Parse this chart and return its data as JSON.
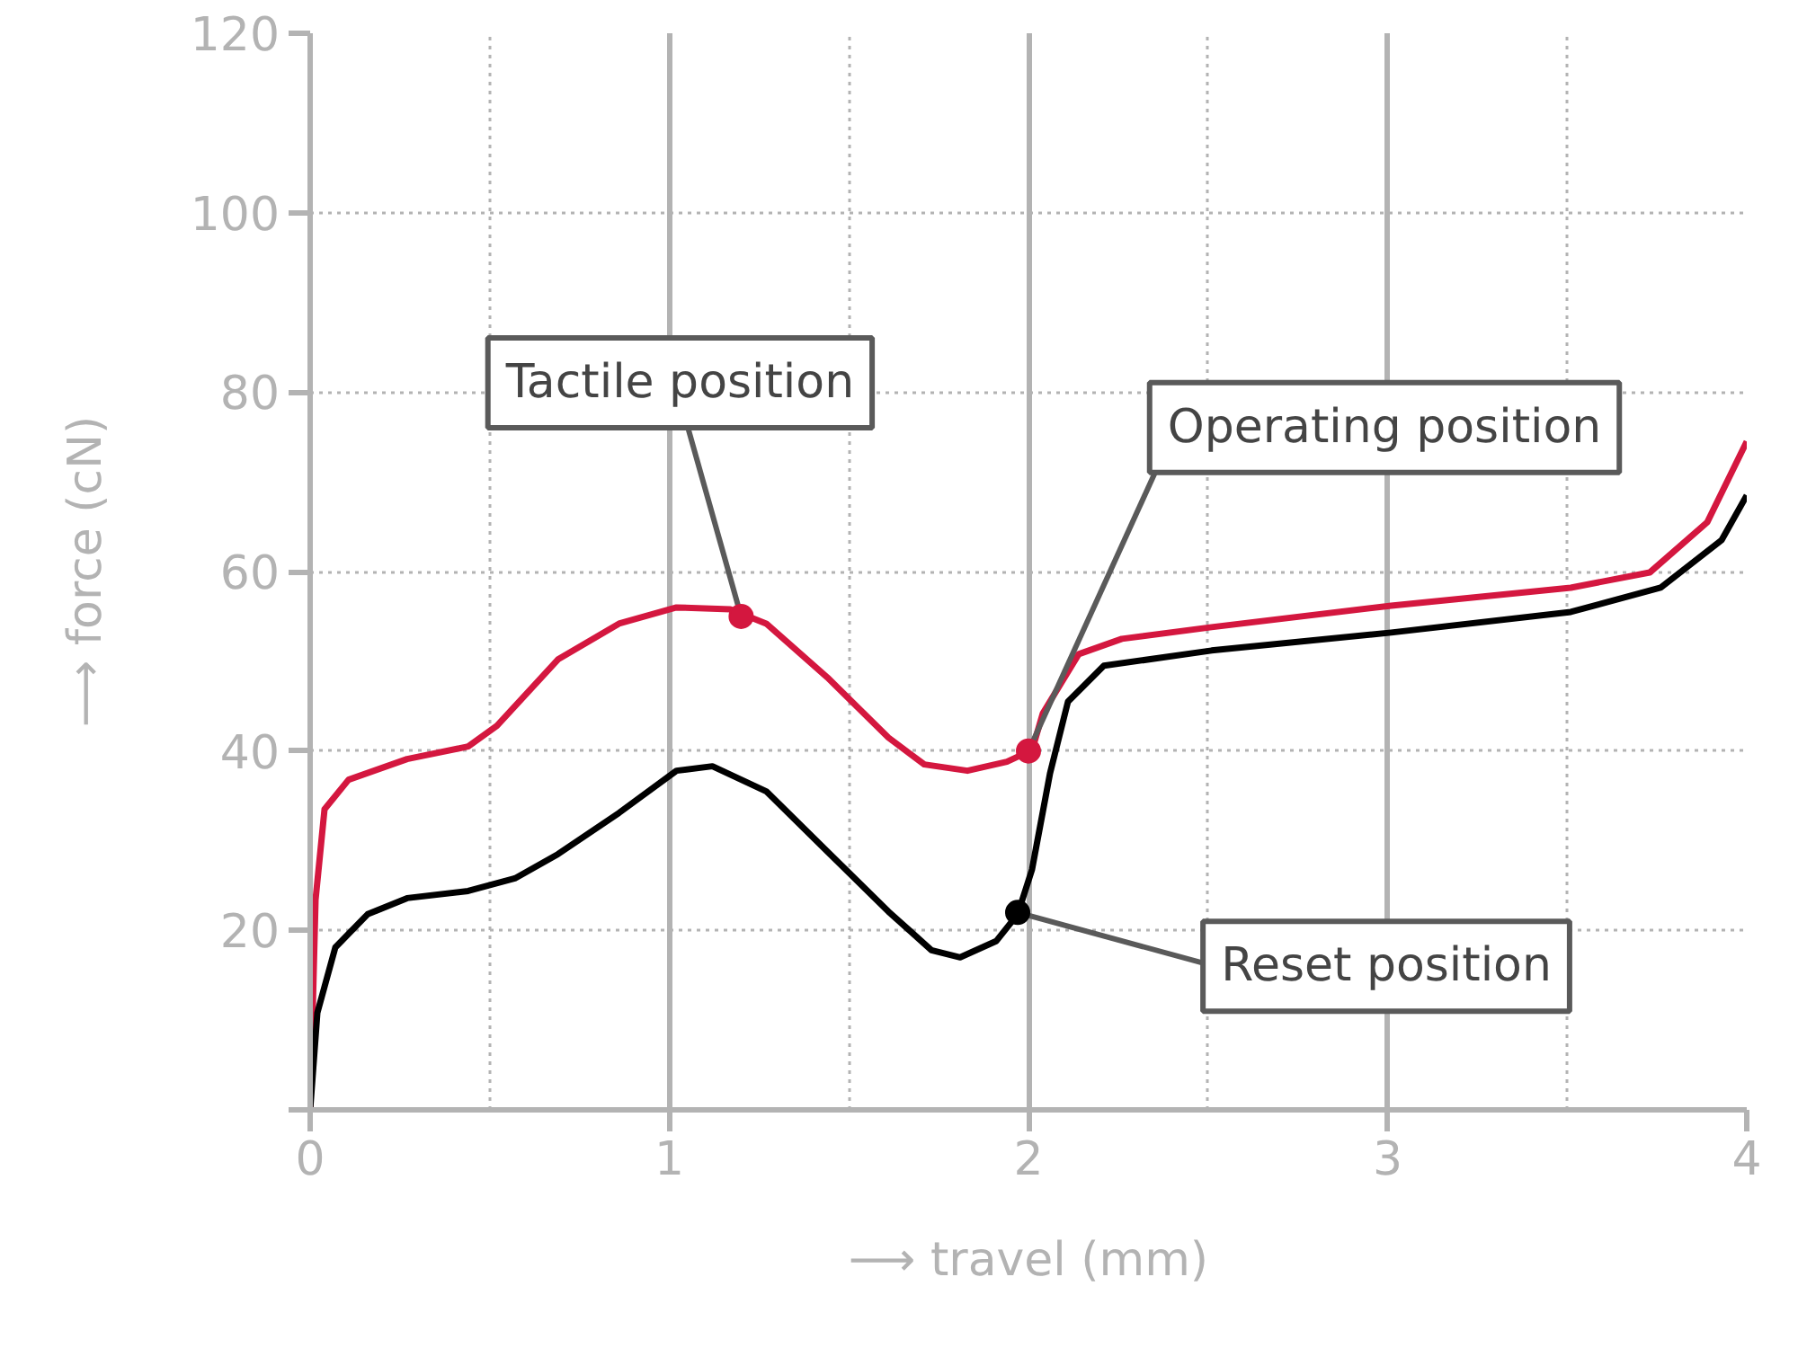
{
  "chart_data": {
    "type": "line",
    "xlabel": "⟶ travel (mm)",
    "ylabel": "⟶ force (cN)",
    "xlim": [
      0,
      4
    ],
    "ylim": [
      0,
      120
    ],
    "xticks": [
      0,
      {
        "value": 0.5,
        "label": null
      },
      1,
      {
        "value": 1.5,
        "label": null
      },
      2,
      {
        "value": 2.5,
        "label": null
      },
      3,
      {
        "value": 3.5,
        "label": null
      },
      4
    ],
    "yticks": [
      {
        "value": 0,
        "label": null
      },
      20,
      40,
      60,
      80,
      100,
      120
    ],
    "grid": true,
    "marker": "none",
    "line_style": "solid",
    "series": [
      {
        "color": "#d4173f",
        "x": [
          0,
          0.015,
          0.04,
          0.107,
          0.27,
          0.44,
          0.52,
          0.69,
          0.86,
          1.02,
          1.17,
          1.27,
          1.44,
          1.61,
          1.71,
          1.83,
          1.94,
          2.01,
          2.04,
          2.14,
          2.26,
          2.51,
          3.01,
          3.51,
          3.73,
          3.89,
          4.0
        ],
        "values": [
          0,
          23.4,
          33.5,
          36.8,
          39.1,
          40.5,
          42.8,
          50.2,
          54.2,
          56,
          55.8,
          54.2,
          48.2,
          41.5,
          38.5,
          37.8,
          38.8,
          40.1,
          44.2,
          50.8,
          52.5,
          53.8,
          56.2,
          58.2,
          59.9,
          65.5,
          74.5
        ]
      },
      {
        "color": "#000000",
        "x": [
          0,
          0.02,
          0.07,
          0.16,
          0.27,
          0.44,
          0.57,
          0.69,
          0.86,
          1.02,
          1.12,
          1.27,
          1.44,
          1.61,
          1.73,
          1.81,
          1.91,
          1.97,
          2.01,
          2.06,
          2.11,
          2.21,
          2.51,
          3.01,
          3.51,
          3.76,
          3.93,
          4.0
        ],
        "values": [
          0,
          10.8,
          18.1,
          21.8,
          23.6,
          24.4,
          25.8,
          28.5,
          33.1,
          37.8,
          38.3,
          35.5,
          28.8,
          22.1,
          17.8,
          17.0,
          18.8,
          21.8,
          26.8,
          37.5,
          45.5,
          49.5,
          51.2,
          53.2,
          55.5,
          58.2,
          63.5,
          68.5
        ]
      }
    ],
    "annotations": [
      {
        "text": "Tactile position",
        "x": 1.2,
        "y": 55
      },
      {
        "text": "Operating position",
        "x": 2.0,
        "y": 40
      },
      {
        "text": "Reset position",
        "x": 1.97,
        "y": 22
      }
    ]
  }
}
